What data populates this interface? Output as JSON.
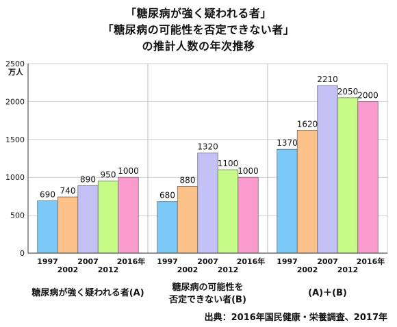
{
  "chart_data": {
    "type": "bar",
    "title_lines": [
      "「糖尿病が強く疑われる者」",
      "「糖尿病の可能性を否定できない者」",
      "の推計人数の年次推移"
    ],
    "ylabel": "万人",
    "ylim": [
      0,
      2500
    ],
    "yticks": [
      0,
      500,
      1000,
      1500,
      2000,
      2500
    ],
    "grid": true,
    "legend": "none",
    "years": [
      "1997",
      "2002",
      "2007",
      "2012",
      "2016年"
    ],
    "year_colors": [
      "#7cc8f6",
      "#fdc18a",
      "#c4c1f7",
      "#c5fb86",
      "#f99ccd"
    ],
    "groups": [
      {
        "label": "糖尿病が強く疑われる者(A)",
        "values": [
          690,
          740,
          890,
          950,
          1000
        ]
      },
      {
        "label": "糖尿病の可能性を\n否定できない者(B)",
        "values": [
          680,
          880,
          1320,
          1100,
          1000
        ]
      },
      {
        "label": "(A)＋(B)",
        "values": [
          1370,
          1620,
          2210,
          2050,
          2000
        ]
      }
    ]
  },
  "source_text": "出典：2016年国民健康・栄養調査、2017年"
}
